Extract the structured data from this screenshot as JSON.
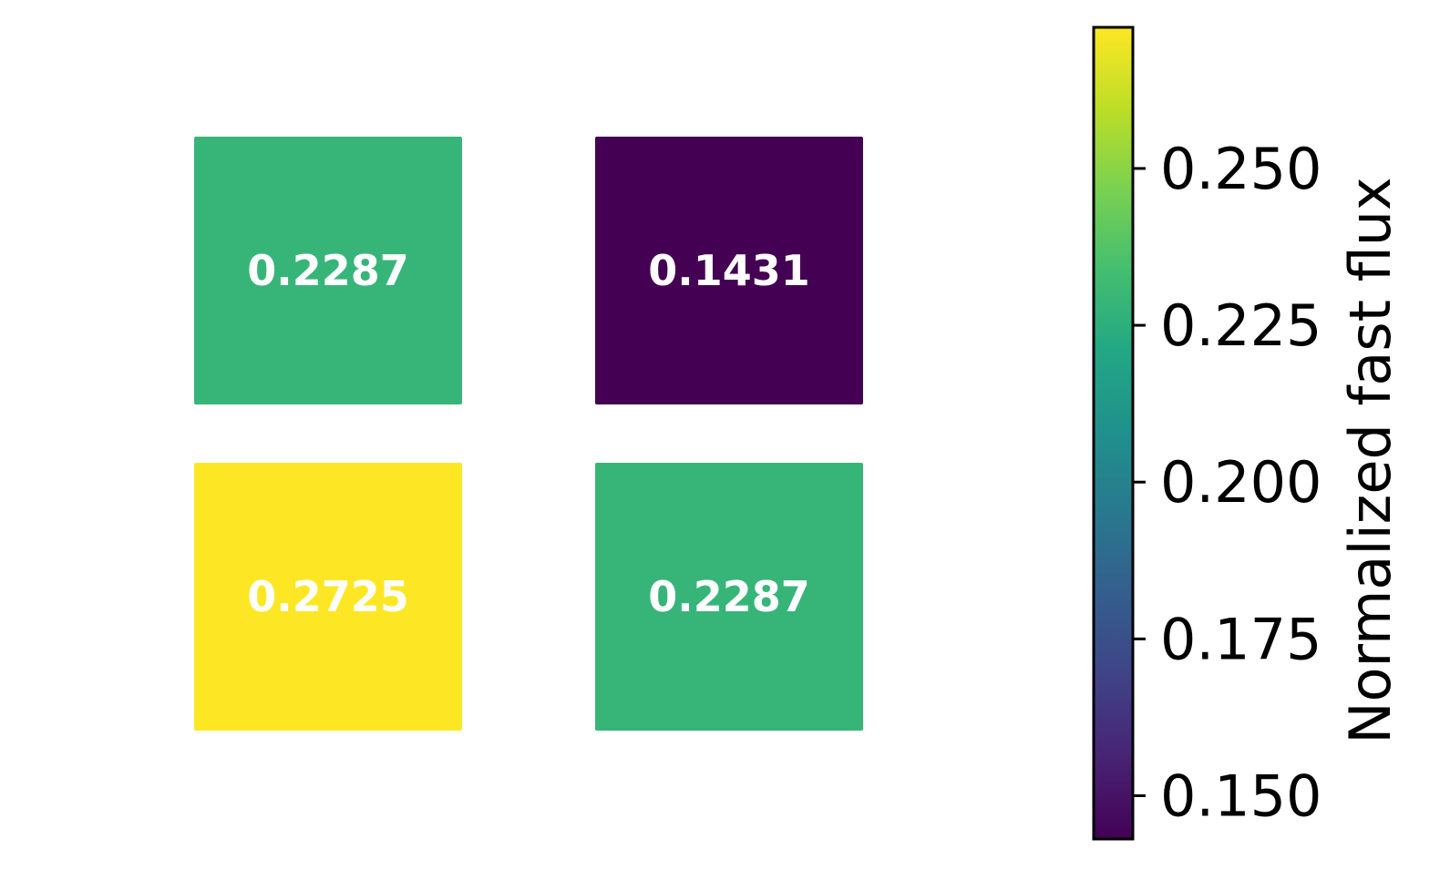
{
  "chart_data": {
    "type": "heatmap",
    "title": "",
    "xlabel": "",
    "ylabel": "",
    "grid": false,
    "rows": 2,
    "cols": 2,
    "values": [
      [
        0.2287,
        0.1431
      ],
      [
        0.2725,
        0.2287
      ]
    ],
    "cell_labels": [
      [
        "0.2287",
        "0.1431"
      ],
      [
        "0.2725",
        "0.2287"
      ]
    ],
    "colormap": "viridis",
    "colorbar": {
      "label": "Normalized fast flux",
      "range": [
        0.1431,
        0.2725
      ],
      "ticks": [
        0.15,
        0.175,
        0.2,
        0.225,
        0.25
      ],
      "tick_labels": [
        "0.150",
        "0.175",
        "0.200",
        "0.225",
        "0.250"
      ],
      "placement": "right"
    },
    "colors": {
      "low": "#440154",
      "mid": "#21918c",
      "high": "#fde725",
      "cell_text": "#ffffff"
    }
  }
}
